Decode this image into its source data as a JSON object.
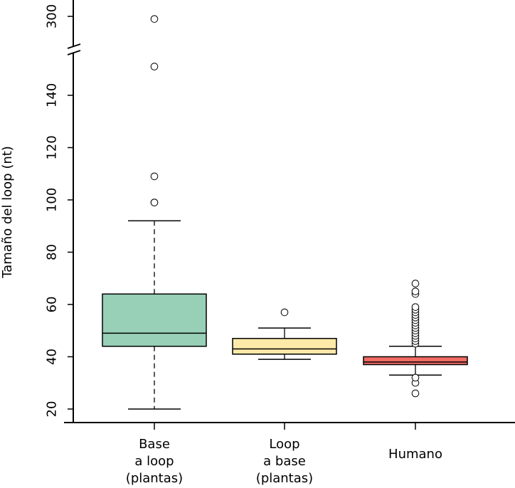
{
  "chart_data": {
    "type": "boxplot",
    "ylabel": "Tamaño del loop (nt)",
    "y_axis_break": {
      "lower_range": [
        15,
        150
      ],
      "upper_range": [
        290,
        310
      ]
    },
    "y_ticks_lower": [
      20,
      40,
      60,
      80,
      100,
      120,
      140
    ],
    "y_ticks_upper": [
      300
    ],
    "categories": [
      {
        "lines": [
          "Base",
          "a loop",
          "(plantas)"
        ]
      },
      {
        "lines": [
          "Loop",
          "a base",
          "(plantas)"
        ]
      },
      {
        "lines": [
          "Humano"
        ]
      }
    ],
    "boxes": [
      {
        "whisker_low": 20,
        "q1": 44,
        "median": 49,
        "q3": 64,
        "whisker_high": 92,
        "outliers": [
          99,
          99,
          109,
          151,
          299
        ],
        "color": "#97d0b7"
      },
      {
        "whisker_low": 39,
        "q1": 41,
        "median": 43,
        "q3": 47,
        "whisker_high": 51,
        "outliers": [
          57
        ],
        "color": "#fdeaa9"
      },
      {
        "whisker_low": 33,
        "q1": 37,
        "median": 38,
        "q3": 40,
        "whisker_high": 44,
        "outliers": [
          26,
          30,
          32,
          45,
          46,
          47,
          48,
          49,
          50,
          51,
          52,
          53,
          54,
          55,
          56,
          57,
          58,
          59,
          64,
          65,
          68
        ],
        "color": "#f26b65"
      }
    ]
  }
}
